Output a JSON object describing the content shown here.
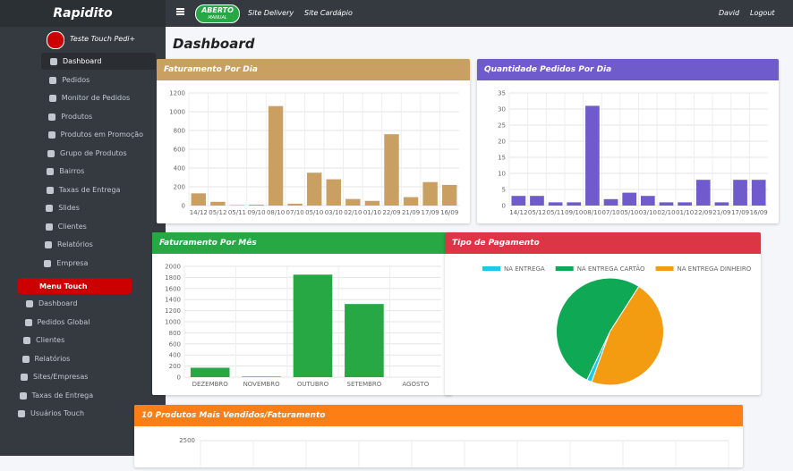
{
  "topbar": {
    "brand": "Rapidito",
    "status": "ABERTO",
    "status_mode": "MANUAL",
    "links": [
      "Site Delivery",
      "Site Cardápio"
    ],
    "user": "David",
    "logout": "Logout"
  },
  "sidebar": {
    "store": "Teste Touch Pedi+",
    "items": [
      "Dashboard",
      "Pedidos",
      "Monitor de Pedidos",
      "Produtos",
      "Produtos em Promoção",
      "Grupo de Produtos",
      "Bairros",
      "Taxas de Entrega",
      "Slides",
      "Clientes",
      "Relatórios",
      "Empresa"
    ],
    "touch_title": "Menu Touch",
    "touch_items": [
      "Dashboard",
      "Pedidos Global",
      "Clientes",
      "Relatórios",
      "Sites/Empresas",
      "Taxas de Entrega",
      "Usuários Touch"
    ]
  },
  "page_title": "Dashboard",
  "charts": [
    {
      "type": "bar",
      "title": "Faturamento Por Dia",
      "header_color": "#c9a062",
      "color": "#c9a062",
      "categories": [
        "14/12",
        "05/12",
        "05/11",
        "09/10",
        "08/10",
        "07/10",
        "05/10",
        "03/10",
        "02/10",
        "01/10",
        "22/09",
        "21/09",
        "17/09",
        "16/09"
      ],
      "values": [
        130,
        40,
        5,
        10,
        1060,
        20,
        350,
        280,
        70,
        50,
        760,
        90,
        250,
        220
      ],
      "ylim": [
        0,
        1200
      ],
      "yticks": [
        0,
        200,
        400,
        600,
        800,
        1000,
        1200
      ]
    },
    {
      "type": "bar",
      "title": "Quantidade Pedidos Por Dia",
      "header_color": "#6f5bcc",
      "color": "#6f5bcc",
      "categories": [
        "14/12",
        "05/12",
        "05/11",
        "09/10",
        "08/10",
        "07/10",
        "05/10",
        "03/10",
        "02/10",
        "01/10",
        "22/09",
        "21/09",
        "17/09",
        "16/09"
      ],
      "values": [
        3,
        3,
        1,
        1,
        31,
        2,
        4,
        3,
        1,
        1,
        8,
        1,
        8,
        8
      ],
      "ylim": [
        0,
        35
      ],
      "yticks": [
        0,
        5,
        10,
        15,
        20,
        25,
        30,
        35
      ]
    },
    {
      "type": "bar",
      "title": "Faturamento Por Mês",
      "header_color": "#28a745",
      "color": "#28a745",
      "categories": [
        "DEZEMBRO",
        "NOVEMBRO",
        "OUTUBRO",
        "SETEMBRO",
        "AGOSTO"
      ],
      "values": [
        170,
        10,
        1850,
        1320,
        0
      ],
      "ylim": [
        0,
        2000
      ],
      "yticks": [
        0,
        200,
        400,
        600,
        800,
        1000,
        1200,
        1400,
        1600,
        1800,
        2000
      ]
    },
    {
      "type": "pie",
      "title": "Tipo de Pagamento",
      "header_color": "#dc3545",
      "categories": [
        "NA ENTREGA",
        "NA ENTREGA CARTÃO",
        "NA ENTREGA DINHEIRO"
      ],
      "values": [
        1.5,
        52,
        46.5
      ],
      "colors": [
        "#1ec8e8",
        "#0fa956",
        "#f39c12"
      ]
    },
    {
      "type": "partial",
      "title": "10 Produtos Mais Vendidos/Faturamento",
      "header_color": "#fd7e14",
      "yticks": [
        2500
      ]
    }
  ]
}
